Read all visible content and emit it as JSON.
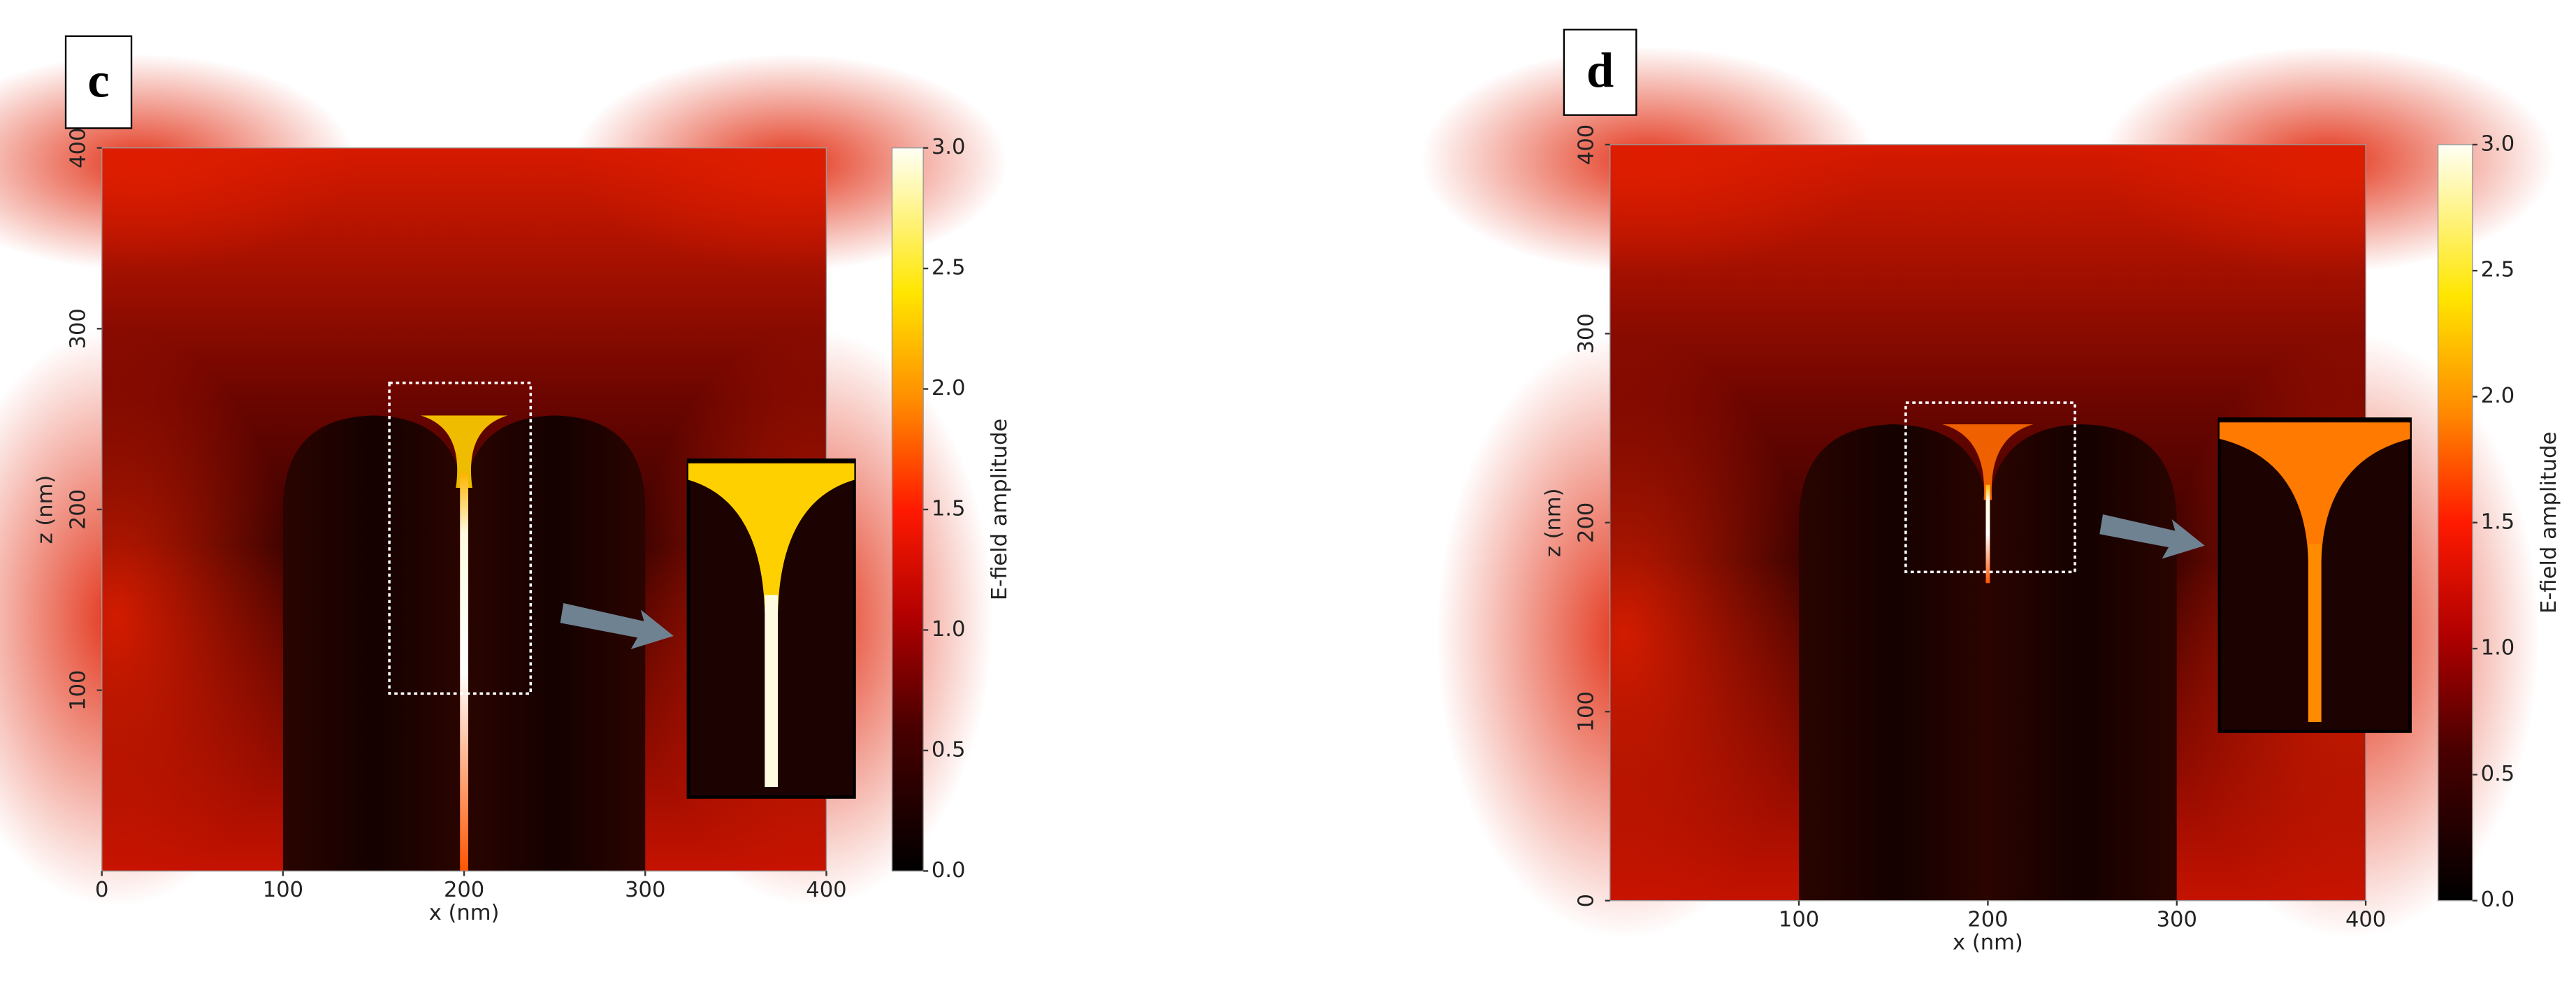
{
  "chart_data": [
    {
      "type": "heatmap",
      "panel_label": "c",
      "xlabel": "x (nm)",
      "ylabel": "z (nm)",
      "xlim": [
        0,
        400
      ],
      "ylim": [
        0,
        400
      ],
      "xticks": [
        0,
        100,
        200,
        300,
        400
      ],
      "yticks": [
        100,
        200,
        300,
        400
      ],
      "colorbar": {
        "label": "E-field amplitude",
        "lim": [
          0,
          3
        ],
        "ticks": [
          {
            "value": 0,
            "label": "0.0"
          },
          0.5,
          {
            "value": 1,
            "label": "1.0"
          },
          1.5,
          {
            "value": 2,
            "label": "2.0"
          },
          2.5,
          {
            "value": 3,
            "label": "3.0"
          }
        ]
      }
    },
    {
      "type": "heatmap",
      "panel_label": "d",
      "xlabel": "x (nm)",
      "ylabel": "z (nm)",
      "xlim": [
        0,
        400
      ],
      "ylim": [
        0,
        400
      ],
      "xticks": [
        100,
        200,
        300,
        400
      ],
      "yticks": [
        0,
        100,
        200,
        300,
        400
      ],
      "colorbar": {
        "label": "E-field amplitude",
        "lim": [
          0,
          3
        ],
        "ticks": [
          {
            "value": 0,
            "label": "0.0"
          },
          0.5,
          {
            "value": 1,
            "label": "1.0"
          },
          1.5,
          {
            "value": 2,
            "label": "2.0"
          },
          2.5,
          {
            "value": 3,
            "label": "3.0"
          }
        ]
      }
    }
  ]
}
